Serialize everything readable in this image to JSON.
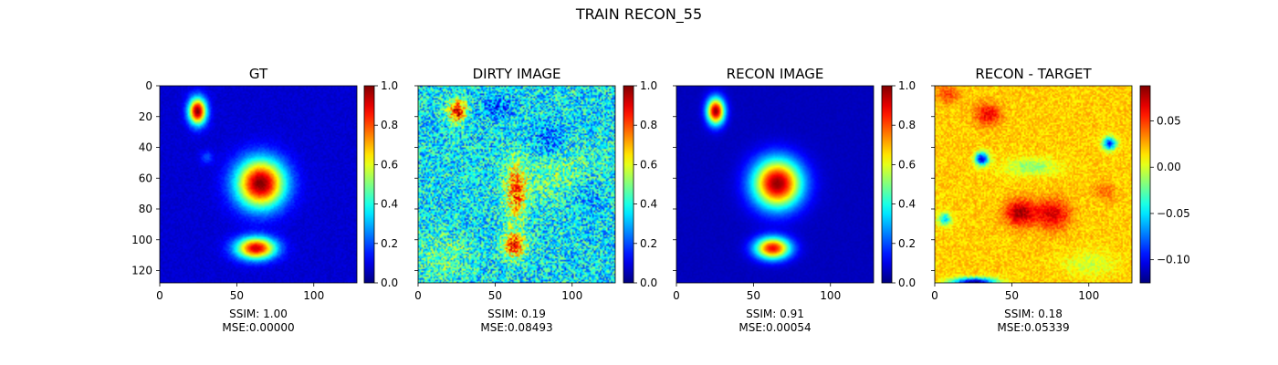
{
  "figure": {
    "suptitle": "TRAIN RECON_55",
    "colormap": "jet"
  },
  "chart_data": [
    {
      "type": "heatmap",
      "title": "GT",
      "xlabel": "SSIM: 1.00\nMSE:0.00000",
      "xlabel_lines": [
        "SSIM: 1.00",
        "MSE:0.00000"
      ],
      "image_size": [
        128,
        128
      ],
      "xlim": [
        0,
        128
      ],
      "ylim": [
        128,
        0
      ],
      "xticks": [
        0,
        50,
        100
      ],
      "yticks": [
        0,
        20,
        40,
        60,
        80,
        100,
        120
      ],
      "show_yticklabels": true,
      "colorbar": {
        "range": [
          0.0,
          1.0
        ],
        "ticks": [
          0.0,
          0.2,
          0.4,
          0.6,
          0.8,
          1.0
        ],
        "ticklabels": [
          "0.0",
          "0.2",
          "0.4",
          "0.6",
          "0.8",
          "1.0"
        ]
      },
      "background_level": 0.08,
      "sources": [
        {
          "x": 24,
          "y": 16,
          "sx": 4,
          "sy": 6,
          "amp": 0.92
        },
        {
          "x": 30,
          "y": 46,
          "sx": 3,
          "sy": 3,
          "amp": 0.12
        },
        {
          "x": 65,
          "y": 63,
          "sx": 11,
          "sy": 11,
          "amp": 0.92
        },
        {
          "x": 62,
          "y": 105,
          "sx": 9,
          "sy": 5,
          "amp": 0.84
        }
      ],
      "noise": 0.02
    },
    {
      "type": "heatmap",
      "title": "DIRTY IMAGE",
      "xlabel": "SSIM: 0.19\nMSE:0.08493",
      "xlabel_lines": [
        "SSIM: 0.19",
        "MSE:0.08493"
      ],
      "image_size": [
        128,
        128
      ],
      "xlim": [
        0,
        128
      ],
      "ylim": [
        128,
        0
      ],
      "xticks": [
        0,
        50,
        100
      ],
      "yticks": [
        0,
        20,
        40,
        60,
        80,
        100,
        120
      ],
      "show_yticklabels": false,
      "colorbar": {
        "range": [
          0.0,
          1.0
        ],
        "ticks": [
          0.0,
          0.2,
          0.4,
          0.6,
          0.8,
          1.0
        ],
        "ticklabels": [
          "0.0",
          "0.2",
          "0.4",
          "0.6",
          "0.8",
          "1.0"
        ]
      },
      "background_level": 0.36,
      "sources": [
        {
          "x": 25,
          "y": 16,
          "sx": 4,
          "sy": 5,
          "amp": 0.55
        },
        {
          "x": 63,
          "y": 68,
          "sx": 5,
          "sy": 13,
          "amp": 0.42
        },
        {
          "x": 62,
          "y": 103,
          "sx": 5,
          "sy": 6,
          "amp": 0.48
        },
        {
          "x": 95,
          "y": 58,
          "sx": 18,
          "sy": 14,
          "amp": 0.12
        },
        {
          "x": 15,
          "y": 110,
          "sx": 12,
          "sy": 10,
          "amp": 0.12
        },
        {
          "x": 50,
          "y": 13,
          "sx": 6,
          "sy": 5,
          "amp": -0.15
        },
        {
          "x": 85,
          "y": 35,
          "sx": 8,
          "sy": 8,
          "amp": -0.14
        },
        {
          "x": 108,
          "y": 70,
          "sx": 8,
          "sy": 10,
          "amp": -0.12
        }
      ],
      "noise": 0.18
    },
    {
      "type": "heatmap",
      "title": "RECON IMAGE",
      "xlabel": "SSIM: 0.91\nMSE:0.00054",
      "xlabel_lines": [
        "SSIM: 0.91",
        "MSE:0.00054"
      ],
      "image_size": [
        128,
        128
      ],
      "xlim": [
        0,
        128
      ],
      "ylim": [
        128,
        0
      ],
      "xticks": [
        0,
        50,
        100
      ],
      "yticks": [
        0,
        20,
        40,
        60,
        80,
        100,
        120
      ],
      "show_yticklabels": false,
      "colorbar": {
        "range": [
          0.0,
          1.0
        ],
        "ticks": [
          0.0,
          0.2,
          0.4,
          0.6,
          0.8,
          1.0
        ],
        "ticklabels": [
          "0.0",
          "0.2",
          "0.4",
          "0.6",
          "0.8",
          "1.0"
        ]
      },
      "background_level": 0.06,
      "sources": [
        {
          "x": 25,
          "y": 16,
          "sx": 4,
          "sy": 6,
          "amp": 0.92
        },
        {
          "x": 65,
          "y": 63,
          "sx": 11,
          "sy": 11,
          "amp": 0.92
        },
        {
          "x": 62,
          "y": 105,
          "sx": 8,
          "sy": 5,
          "amp": 0.82
        }
      ],
      "noise": 0.01
    },
    {
      "type": "heatmap",
      "title": "RECON - TARGET",
      "xlabel": "SSIM: 0.18\nMSE:0.05339",
      "xlabel_lines": [
        "SSIM: 0.18",
        "MSE:0.05339"
      ],
      "image_size": [
        128,
        128
      ],
      "xlim": [
        0,
        128
      ],
      "ylim": [
        128,
        0
      ],
      "xticks": [
        0,
        50,
        100
      ],
      "yticks": [
        0,
        20,
        40,
        60,
        80,
        100,
        120
      ],
      "show_yticklabels": false,
      "colorbar": {
        "range": [
          -0.125,
          0.088
        ],
        "ticks": [
          -0.1,
          -0.05,
          0.0,
          0.05
        ],
        "ticklabels": [
          "−0.10",
          "−0.05",
          "0.00",
          "0.05"
        ]
      },
      "background_level": 0.018,
      "sources": [
        {
          "x": 55,
          "y": 82,
          "sx": 7,
          "sy": 6,
          "amp": 0.06
        },
        {
          "x": 76,
          "y": 83,
          "sx": 8,
          "sy": 7,
          "amp": 0.05
        },
        {
          "x": 34,
          "y": 18,
          "sx": 6,
          "sy": 5,
          "amp": 0.045
        },
        {
          "x": 8,
          "y": 5,
          "sx": 5,
          "sy": 4,
          "amp": 0.03
        },
        {
          "x": 110,
          "y": 68,
          "sx": 5,
          "sy": 4,
          "amp": 0.02
        },
        {
          "x": 30,
          "y": 47,
          "sx": 3,
          "sy": 3,
          "amp": -0.125
        },
        {
          "x": 113,
          "y": 37,
          "sx": 3,
          "sy": 3,
          "amp": -0.11
        },
        {
          "x": 6,
          "y": 86,
          "sx": 3,
          "sy": 3,
          "amp": -0.07
        },
        {
          "x": 25,
          "y": 127,
          "sx": 10,
          "sy": 2,
          "amp": -0.14
        },
        {
          "x": 62,
          "y": 52,
          "sx": 12,
          "sy": 4,
          "amp": -0.035
        },
        {
          "x": 100,
          "y": 115,
          "sx": 12,
          "sy": 6,
          "amp": -0.02
        }
      ],
      "noise": 0.012
    }
  ]
}
